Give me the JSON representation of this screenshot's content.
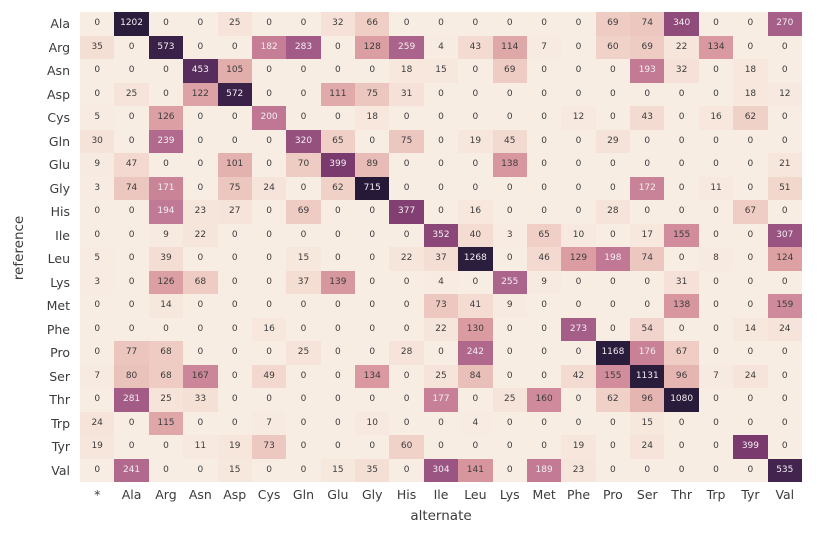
{
  "chart_data": {
    "type": "heatmap",
    "title": "",
    "xlabel": "alternate",
    "ylabel": "reference",
    "legend": "none",
    "grid": false,
    "x_categories": [
      "*",
      "Ala",
      "Arg",
      "Asn",
      "Asp",
      "Cys",
      "Gln",
      "Glu",
      "Gly",
      "His",
      "Ile",
      "Leu",
      "Lys",
      "Met",
      "Phe",
      "Pro",
      "Ser",
      "Thr",
      "Trp",
      "Tyr",
      "Val"
    ],
    "y_categories": [
      "Ala",
      "Arg",
      "Asn",
      "Asp",
      "Cys",
      "Gln",
      "Glu",
      "Gly",
      "His",
      "Ile",
      "Leu",
      "Lys",
      "Met",
      "Phe",
      "Pro",
      "Ser",
      "Thr",
      "Trp",
      "Tyr",
      "Val"
    ],
    "values": [
      [
        0,
        1202,
        0,
        0,
        25,
        0,
        0,
        32,
        66,
        0,
        0,
        0,
        0,
        0,
        0,
        69,
        74,
        340,
        0,
        0,
        270
      ],
      [
        35,
        0,
        573,
        0,
        0,
        182,
        283,
        0,
        128,
        259,
        4,
        43,
        114,
        7,
        0,
        60,
        69,
        22,
        134,
        0,
        0
      ],
      [
        0,
        0,
        0,
        453,
        105,
        0,
        0,
        0,
        0,
        18,
        15,
        0,
        69,
        0,
        0,
        0,
        193,
        32,
        0,
        18,
        0
      ],
      [
        0,
        25,
        0,
        122,
        572,
        0,
        0,
        111,
        75,
        31,
        0,
        0,
        0,
        0,
        0,
        0,
        0,
        0,
        0,
        18,
        12
      ],
      [
        5,
        0,
        126,
        0,
        0,
        200,
        0,
        0,
        18,
        0,
        0,
        0,
        0,
        0,
        12,
        0,
        43,
        0,
        16,
        62,
        0
      ],
      [
        30,
        0,
        239,
        0,
        0,
        0,
        320,
        65,
        0,
        75,
        0,
        19,
        45,
        0,
        0,
        29,
        0,
        0,
        0,
        0,
        0
      ],
      [
        9,
        47,
        0,
        0,
        101,
        0,
        70,
        399,
        89,
        0,
        0,
        0,
        138,
        0,
        0,
        0,
        0,
        0,
        0,
        0,
        21
      ],
      [
        3,
        74,
        171,
        0,
        75,
        24,
        0,
        62,
        715,
        0,
        0,
        0,
        0,
        0,
        0,
        0,
        172,
        0,
        11,
        0,
        51
      ],
      [
        0,
        0,
        194,
        23,
        27,
        0,
        69,
        0,
        0,
        377,
        0,
        16,
        0,
        0,
        0,
        28,
        0,
        0,
        0,
        67,
        0
      ],
      [
        0,
        0,
        9,
        22,
        0,
        0,
        0,
        0,
        0,
        0,
        352,
        40,
        3,
        65,
        10,
        0,
        17,
        155,
        0,
        0,
        307
      ],
      [
        5,
        0,
        39,
        0,
        0,
        0,
        15,
        0,
        0,
        22,
        37,
        1268,
        0,
        46,
        129,
        198,
        74,
        0,
        8,
        0,
        124
      ],
      [
        3,
        0,
        126,
        68,
        0,
        0,
        37,
        139,
        0,
        0,
        4,
        0,
        255,
        9,
        0,
        0,
        0,
        31,
        0,
        0,
        0
      ],
      [
        0,
        0,
        14,
        0,
        0,
        0,
        0,
        0,
        0,
        0,
        73,
        41,
        9,
        0,
        0,
        0,
        0,
        138,
        0,
        0,
        159
      ],
      [
        0,
        0,
        0,
        0,
        0,
        16,
        0,
        0,
        0,
        0,
        22,
        130,
        0,
        0,
        273,
        0,
        54,
        0,
        0,
        14,
        24
      ],
      [
        0,
        77,
        68,
        0,
        0,
        0,
        25,
        0,
        0,
        28,
        0,
        242,
        0,
        0,
        0,
        1168,
        176,
        67,
        0,
        0,
        0
      ],
      [
        7,
        80,
        68,
        167,
        0,
        49,
        0,
        0,
        134,
        0,
        25,
        84,
        0,
        0,
        42,
        155,
        1131,
        96,
        7,
        24,
        0
      ],
      [
        0,
        281,
        25,
        33,
        0,
        0,
        0,
        0,
        0,
        0,
        177,
        0,
        25,
        160,
        0,
        62,
        96,
        1080,
        0,
        0,
        0
      ],
      [
        24,
        0,
        115,
        0,
        0,
        7,
        0,
        0,
        10,
        0,
        0,
        4,
        0,
        0,
        0,
        0,
        15,
        0,
        0,
        0,
        0
      ],
      [
        19,
        0,
        0,
        11,
        19,
        73,
        0,
        0,
        0,
        60,
        0,
        0,
        0,
        0,
        19,
        0,
        24,
        0,
        0,
        399,
        0
      ],
      [
        0,
        241,
        0,
        0,
        15,
        0,
        0,
        15,
        35,
        0,
        304,
        141,
        0,
        189,
        23,
        0,
        0,
        0,
        0,
        0,
        535
      ]
    ],
    "vmin": 0,
    "vmax": 1268,
    "colormap_stops": [
      [
        0.0,
        "#f8ede3"
      ],
      [
        0.02,
        "#f6e4da"
      ],
      [
        0.05,
        "#f0d0c7"
      ],
      [
        0.08,
        "#e3b1ae"
      ],
      [
        0.105,
        "#da9aa0"
      ],
      [
        0.14,
        "#c78097"
      ],
      [
        0.17,
        "#ba7192"
      ],
      [
        0.215,
        "#a55e88"
      ],
      [
        0.27,
        "#8e4a7a"
      ],
      [
        0.315,
        "#7b3a6d"
      ],
      [
        0.36,
        "#552c5c"
      ],
      [
        0.45,
        "#3a2148"
      ],
      [
        0.565,
        "#261837"
      ],
      [
        1.0,
        "#2a1e3c"
      ]
    ],
    "annot_text_dark": "#3d3d3d",
    "annot_text_light": "#f2edf2",
    "annot_light_threshold": 169,
    "tick_label_color": "#3b3b3b",
    "background_color": "#ffffff"
  }
}
